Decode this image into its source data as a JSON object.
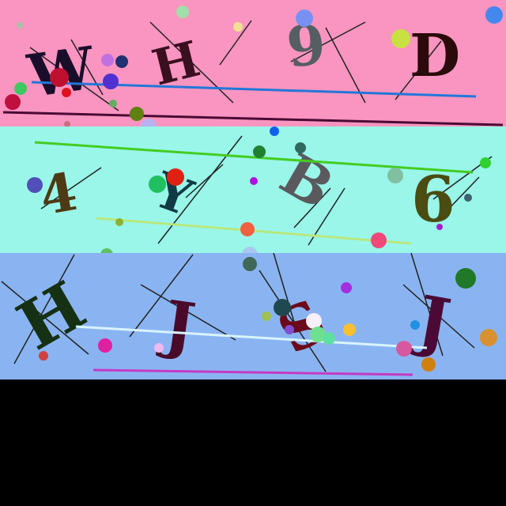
{
  "bands": [
    {
      "background": "#f995c0",
      "characters": [
        {
          "text": "W",
          "color": "#1a0d2a"
        },
        {
          "text": "H",
          "color": "#3a0f20"
        },
        {
          "text": "9",
          "color": "#555f63"
        },
        {
          "text": "D",
          "color": "#2a0a0a"
        }
      ],
      "line_colors": [
        "#2277d8",
        "#4a0a35"
      ]
    },
    {
      "background": "#99f6e9",
      "characters": [
        {
          "text": "4",
          "color": "#4d3a14"
        },
        {
          "text": "Y",
          "color": "#103a44"
        },
        {
          "text": "B",
          "color": "#5a5a5e"
        },
        {
          "text": "6",
          "color": "#4a4c12"
        }
      ],
      "line_colors": [
        "#44cc22",
        "#b8e880"
      ]
    },
    {
      "background": "#8ab4f1",
      "characters": [
        {
          "text": "H",
          "color": "#163014"
        },
        {
          "text": "J",
          "color": "#4a0a2a"
        },
        {
          "text": "S",
          "color": "#6a0a1a"
        },
        {
          "text": "J",
          "color": "#4a0a35"
        }
      ],
      "line_colors": [
        "#d8f4ff",
        "#c43ac4"
      ]
    }
  ],
  "footer_background": "#000000"
}
